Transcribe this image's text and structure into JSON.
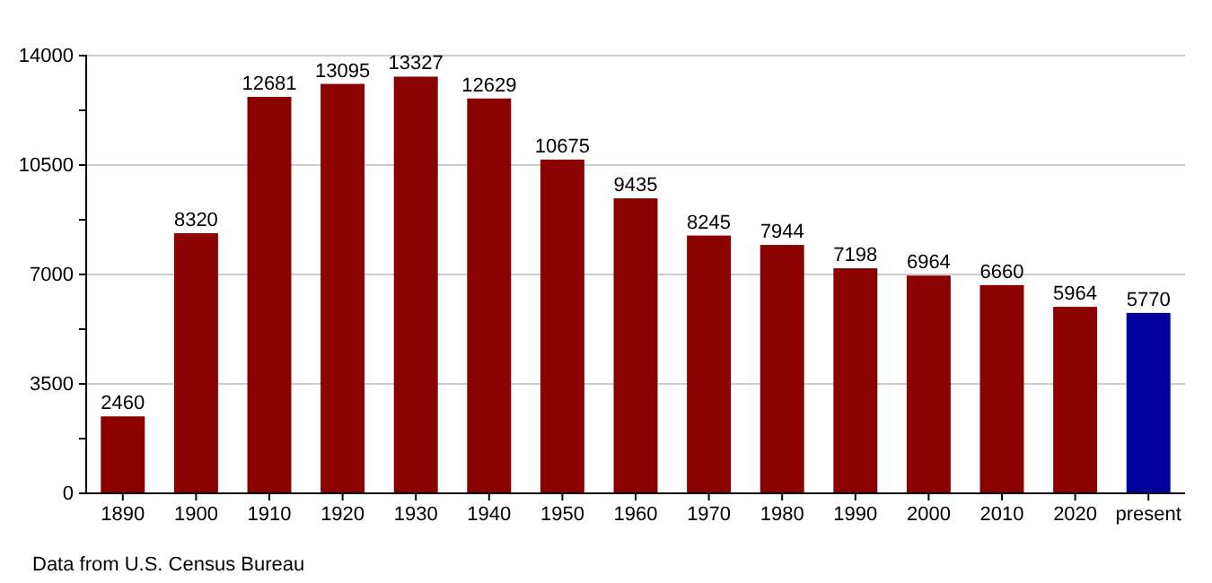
{
  "chart_data": {
    "type": "bar",
    "categories": [
      "1890",
      "1900",
      "1910",
      "1920",
      "1930",
      "1940",
      "1950",
      "1960",
      "1970",
      "1980",
      "1990",
      "2000",
      "2010",
      "2020",
      "present"
    ],
    "values": [
      2460,
      8320,
      12681,
      13095,
      13327,
      12629,
      10675,
      9435,
      8245,
      7944,
      7198,
      6964,
      6660,
      5964,
      5770
    ],
    "colors": [
      "#8b0000",
      "#8b0000",
      "#8b0000",
      "#8b0000",
      "#8b0000",
      "#8b0000",
      "#8b0000",
      "#8b0000",
      "#8b0000",
      "#8b0000",
      "#8b0000",
      "#8b0000",
      "#8b0000",
      "#8b0000",
      "#00009c"
    ],
    "ylim": [
      0,
      14000
    ],
    "yticks": [
      0,
      {
        "value": 1750,
        "label": null
      },
      3500,
      {
        "value": 5250,
        "label": null
      },
      7000,
      {
        "value": 8750,
        "label": null
      },
      10500,
      {
        "value": 12250,
        "label": null
      },
      14000
    ],
    "grid": "y",
    "data_labels": true,
    "annotations": [
      "Data from U.S. Census Bureau"
    ]
  }
}
